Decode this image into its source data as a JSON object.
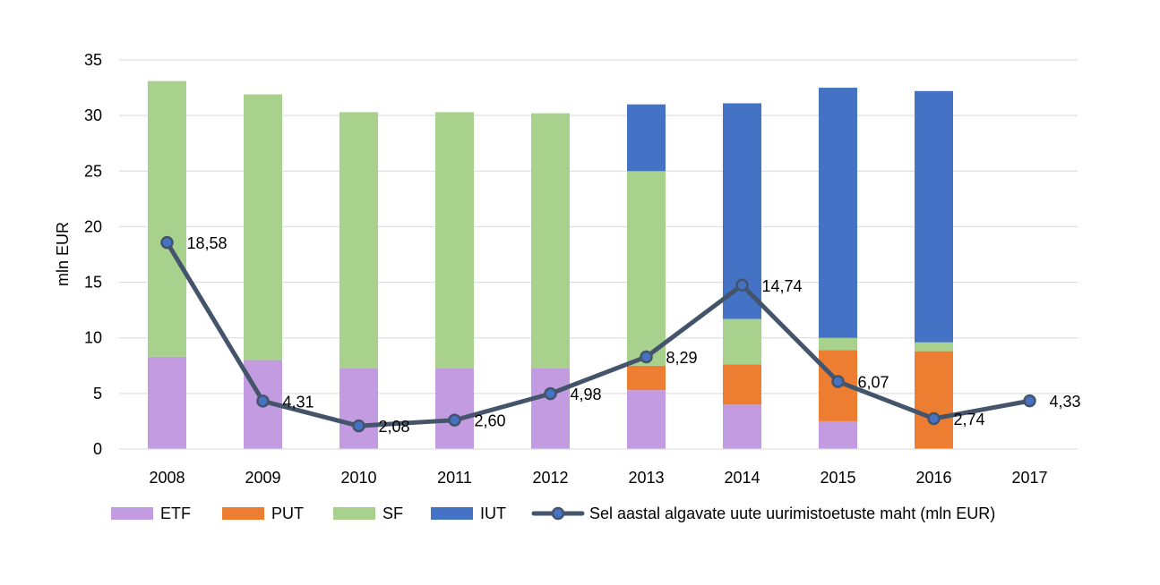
{
  "chart_data": {
    "type": "bar",
    "stacked": true,
    "title": "",
    "xlabel": "",
    "ylabel": "mln EUR",
    "ylim": [
      0,
      35
    ],
    "yticks": [
      0,
      5,
      10,
      15,
      20,
      25,
      30,
      35
    ],
    "grid": true,
    "legend_position": "bottom",
    "categories": [
      "2008",
      "2009",
      "2010",
      "2011",
      "2012",
      "2013",
      "2014",
      "2015",
      "2016",
      "2017"
    ],
    "series": [
      {
        "name": "ETF",
        "color": "#C39BE0",
        "values": [
          8.3,
          8.0,
          7.3,
          7.3,
          7.3,
          5.3,
          4.0,
          2.5,
          0.0,
          0.0
        ]
      },
      {
        "name": "PUT",
        "color": "#ED7D31",
        "values": [
          0.0,
          0.0,
          0.0,
          0.0,
          0.0,
          2.2,
          3.6,
          6.4,
          8.8,
          0.0
        ]
      },
      {
        "name": "SF",
        "color": "#A9D18E",
        "values": [
          24.8,
          23.9,
          23.0,
          23.0,
          22.9,
          17.5,
          4.1,
          1.1,
          0.8,
          0.0
        ]
      },
      {
        "name": "IUT",
        "color": "#4472C4",
        "values": [
          0.0,
          0.0,
          0.0,
          0.0,
          0.0,
          6.0,
          19.4,
          22.5,
          22.6,
          0.0
        ]
      }
    ],
    "line": {
      "name": "Sel aastal algavate uute uurimistoetuste maht (mln EUR)",
      "color": "#44546A",
      "values": [
        18.58,
        4.31,
        2.08,
        2.6,
        4.98,
        8.29,
        14.74,
        6.07,
        2.74,
        4.33
      ],
      "labels": [
        "18,58",
        "4,31",
        "2,08",
        "2,60",
        "4,98",
        "8,29",
        "14,74",
        "6,07",
        "2,74",
        "4,33"
      ]
    }
  }
}
